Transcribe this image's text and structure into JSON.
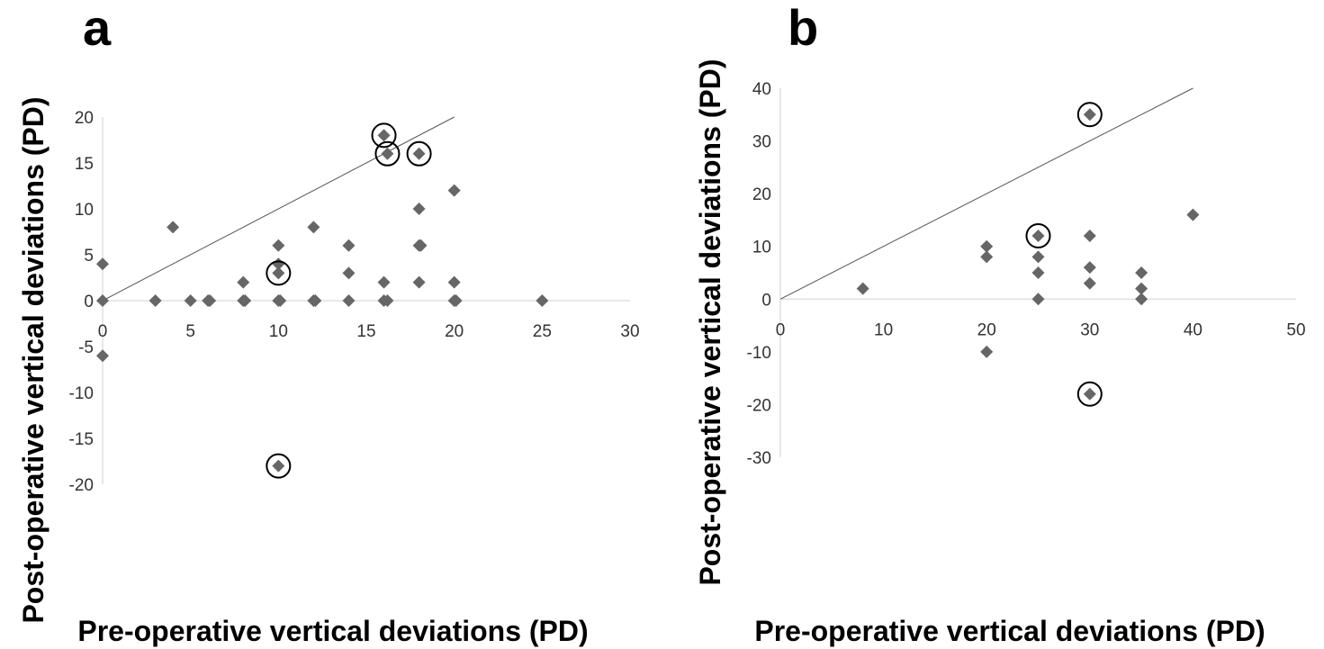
{
  "chart_data": [
    {
      "type": "scatter",
      "panel_label": "a",
      "xlabel": "Pre-operative vertical deviations (PD)",
      "ylabel": "Post-operative vertical deviations (PD)",
      "xlim": [
        0,
        30
      ],
      "ylim": [
        -20,
        20
      ],
      "xticks": [
        0,
        5,
        10,
        15,
        20,
        25,
        30
      ],
      "yticks": [
        -20,
        -15,
        -10,
        -5,
        0,
        5,
        10,
        15,
        20
      ],
      "xtick_labels": [
        "0",
        "5",
        "10",
        "15",
        "20",
        "25",
        "30"
      ],
      "ytick_labels": [
        "-20",
        "-15",
        "-10",
        "-5",
        "0",
        "5",
        "10",
        "15",
        "20"
      ],
      "reference_line": [
        [
          0,
          0
        ],
        [
          20,
          20
        ]
      ],
      "points": [
        [
          0,
          4
        ],
        [
          0,
          0
        ],
        [
          0,
          -6
        ],
        [
          3,
          0
        ],
        [
          4,
          8
        ],
        [
          5,
          0
        ],
        [
          6,
          0
        ],
        [
          6.1,
          0
        ],
        [
          8,
          2
        ],
        [
          8,
          0
        ],
        [
          8.1,
          0
        ],
        [
          10,
          6
        ],
        [
          10,
          4
        ],
        [
          10,
          3
        ],
        [
          10,
          0
        ],
        [
          10.1,
          0
        ],
        [
          10,
          -18
        ],
        [
          12,
          8
        ],
        [
          12,
          0
        ],
        [
          12.1,
          0
        ],
        [
          14,
          6
        ],
        [
          14,
          3
        ],
        [
          14,
          0
        ],
        [
          16,
          18
        ],
        [
          16.2,
          16
        ],
        [
          16,
          2
        ],
        [
          16,
          0
        ],
        [
          16.2,
          0
        ],
        [
          18,
          16
        ],
        [
          18,
          10
        ],
        [
          18,
          6
        ],
        [
          18.1,
          6
        ],
        [
          18,
          2
        ],
        [
          20,
          12
        ],
        [
          20,
          2
        ],
        [
          20,
          0
        ],
        [
          20.1,
          0
        ],
        [
          25,
          0
        ]
      ],
      "circled_points": [
        [
          16,
          18
        ],
        [
          16.2,
          16
        ],
        [
          18,
          16
        ],
        [
          10,
          3
        ],
        [
          10,
          -18
        ]
      ],
      "marker_color": "#666666"
    },
    {
      "type": "scatter",
      "panel_label": "b",
      "xlabel": "Pre-operative vertical deviations (PD)",
      "ylabel": "Post-operative vertical deviations (PD)",
      "xlim": [
        0,
        50
      ],
      "ylim": [
        -30,
        40
      ],
      "xticks": [
        0,
        10,
        20,
        30,
        40,
        50
      ],
      "yticks": [
        -30,
        -20,
        -10,
        0,
        10,
        20,
        30,
        40
      ],
      "xtick_labels": [
        "0",
        "10",
        "20",
        "30",
        "40",
        "50"
      ],
      "ytick_labels": [
        "-30",
        "-20",
        "-10",
        "0",
        "10",
        "20",
        "30",
        "40"
      ],
      "reference_line": [
        [
          0,
          0
        ],
        [
          40,
          40
        ]
      ],
      "points": [
        [
          8,
          2
        ],
        [
          20,
          10
        ],
        [
          20,
          8
        ],
        [
          20,
          -10
        ],
        [
          25,
          12
        ],
        [
          25,
          8
        ],
        [
          25,
          5
        ],
        [
          25,
          0
        ],
        [
          30,
          35
        ],
        [
          30,
          12
        ],
        [
          30,
          6
        ],
        [
          30,
          3
        ],
        [
          30,
          -18
        ],
        [
          35,
          5
        ],
        [
          35,
          2
        ],
        [
          35,
          0
        ],
        [
          40,
          16
        ]
      ],
      "circled_points": [
        [
          30,
          35
        ],
        [
          25,
          12
        ],
        [
          30,
          -18
        ]
      ],
      "marker_color": "#666666"
    }
  ]
}
